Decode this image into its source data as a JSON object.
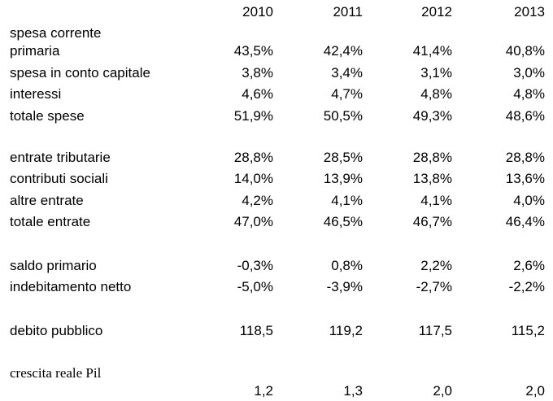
{
  "years": [
    "2010",
    "2011",
    "2012",
    "2013"
  ],
  "rows": {
    "spesa_corrente_1": "spesa corrente",
    "spesa_corrente_2": "primaria",
    "spesa_corrente_values": [
      "43,5%",
      "42,4%",
      "41,4%",
      "40,8%"
    ],
    "spesa_capitale": "spesa in conto capitale",
    "spesa_capitale_values": [
      "3,8%",
      "3,4%",
      "3,1%",
      "3,0%"
    ],
    "interessi": "interessi",
    "interessi_values": [
      "4,6%",
      "4,7%",
      "4,8%",
      "4,8%"
    ],
    "totale_spese": "totale spese",
    "totale_spese_values": [
      "51,9%",
      "50,5%",
      "49,3%",
      "48,6%"
    ],
    "entrate_tributarie": "entrate tributarie",
    "entrate_tributarie_values": [
      "28,8%",
      "28,5%",
      "28,8%",
      "28,8%"
    ],
    "contributi_sociali": "contributi sociali",
    "contributi_sociali_values": [
      "14,0%",
      "13,9%",
      "13,8%",
      "13,6%"
    ],
    "altre_entrate": "altre entrate",
    "altre_entrate_values": [
      "4,2%",
      "4,1%",
      "4,1%",
      "4,0%"
    ],
    "totale_entrate": "totale entrate",
    "totale_entrate_values": [
      "47,0%",
      "46,5%",
      "46,7%",
      "46,4%"
    ],
    "saldo_primario": "saldo primario",
    "saldo_primario_values": [
      "-0,3%",
      "0,8%",
      "2,2%",
      "2,6%"
    ],
    "indebitamento_netto": "indebitamento netto",
    "indebitamento_netto_values": [
      "-5,0%",
      "-3,9%",
      "-2,7%",
      "-2,2%"
    ],
    "debito_pubblico": "debito pubblico",
    "debito_pubblico_values": [
      "118,5",
      "119,2",
      "117,5",
      "115,2"
    ],
    "crescita_pil": "crescita reale Pil",
    "crescita_pil_values": [
      "1,2",
      "1,3",
      "2,0",
      "2,0"
    ]
  }
}
